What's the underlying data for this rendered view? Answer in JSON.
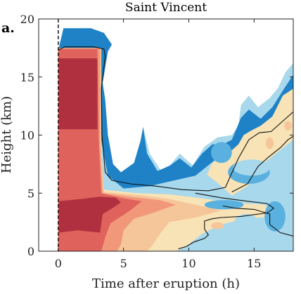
{
  "panel_label": "a.",
  "chart_data": {
    "type": "heatmap",
    "title": "Saint Vincent",
    "xlabel": "Time after eruption (h)",
    "ylabel": "Height (km)",
    "xlim": [
      -1.5,
      18
    ],
    "ylim": [
      0,
      20
    ],
    "xticks": [
      0,
      5,
      10,
      15
    ],
    "yticks": [
      0,
      5,
      10,
      15,
      20
    ],
    "grid": false,
    "legend": "none",
    "eruption_time_line": 0,
    "colors": {
      "dark_red": "#b03040",
      "red": "#e0625c",
      "salmon": "#f2987a",
      "peach": "#f5c69a",
      "cream": "#f8e3b6",
      "light_blue": "#a8d8ec",
      "mid_blue": "#5ab0de",
      "blue": "#1f82c6",
      "dark_blue": "#1565a8",
      "contour": "#111111"
    },
    "regions": [
      {
        "name": "outer-plume",
        "level": "light_blue",
        "points": [
          [
            0,
            0
          ],
          [
            0,
            17.3
          ],
          [
            0.4,
            19.2
          ],
          [
            2.5,
            19.2
          ],
          [
            3.5,
            18.8
          ],
          [
            4.1,
            17.8
          ],
          [
            3.8,
            17.2
          ],
          [
            3.5,
            16.5
          ],
          [
            3.3,
            14
          ],
          [
            3.4,
            10
          ],
          [
            3.6,
            8
          ],
          [
            4.2,
            6.4
          ],
          [
            5.2,
            6.4
          ],
          [
            6.2,
            8
          ],
          [
            6.5,
            10.7
          ],
          [
            7.0,
            8.4
          ],
          [
            8.0,
            6.7
          ],
          [
            9.3,
            8.4
          ],
          [
            10.3,
            7.4
          ],
          [
            11.2,
            9.0
          ],
          [
            12.2,
            9.8
          ],
          [
            13.3,
            10.0
          ],
          [
            13.8,
            10.8
          ],
          [
            14.0,
            12.6
          ],
          [
            14.6,
            13.4
          ],
          [
            15.3,
            12.4
          ],
          [
            16.2,
            13.2
          ],
          [
            16.8,
            14.0
          ],
          [
            17.4,
            15.4
          ],
          [
            18,
            16.2
          ],
          [
            18,
            0
          ]
        ]
      },
      {
        "name": "blue-layer",
        "level": "blue",
        "points": [
          [
            0,
            17.3
          ],
          [
            0.4,
            19.2
          ],
          [
            2.5,
            19.2
          ],
          [
            3.5,
            18.8
          ],
          [
            4.1,
            17.8
          ],
          [
            3.8,
            17.2
          ],
          [
            3.4,
            14.5
          ],
          [
            3.6,
            13
          ],
          [
            3.8,
            10
          ],
          [
            4.2,
            7.5
          ],
          [
            4.8,
            6.8
          ],
          [
            5.8,
            7.6
          ],
          [
            6.3,
            9.5
          ],
          [
            6.5,
            10.7
          ],
          [
            6.8,
            8.4
          ],
          [
            7.6,
            6.9
          ],
          [
            8.6,
            7.4
          ],
          [
            9.3,
            8.0
          ],
          [
            10.2,
            7.2
          ],
          [
            11.0,
            8.4
          ],
          [
            11.8,
            9.2
          ],
          [
            12.6,
            9.2
          ],
          [
            13.3,
            9.6
          ],
          [
            14.0,
            11.5
          ],
          [
            14.6,
            12.2
          ],
          [
            15.5,
            11.4
          ],
          [
            16.4,
            12.4
          ],
          [
            17.3,
            14.0
          ],
          [
            18,
            15.2
          ],
          [
            18,
            13.0
          ],
          [
            16.5,
            11.2
          ],
          [
            15.0,
            10.2
          ],
          [
            13.8,
            8.6
          ],
          [
            12.5,
            8.3
          ],
          [
            10.5,
            6.5
          ],
          [
            8.5,
            6.0
          ],
          [
            7.0,
            5.6
          ],
          [
            5.0,
            5.4
          ],
          [
            3.8,
            6.5
          ],
          [
            3.3,
            9.5
          ],
          [
            3.1,
            14.0
          ],
          [
            2.8,
            16.8
          ],
          [
            0.5,
            17.2
          ]
        ]
      },
      {
        "name": "cream-region",
        "level": "cream",
        "points": [
          [
            3.2,
            9
          ],
          [
            3.5,
            5.3
          ],
          [
            6,
            5.0
          ],
          [
            8.5,
            4.9
          ],
          [
            10,
            4.7
          ],
          [
            12,
            4.4
          ],
          [
            14.5,
            4.1
          ],
          [
            15.8,
            4.0
          ],
          [
            16.5,
            3.5
          ],
          [
            16.2,
            3.0
          ],
          [
            14,
            2.7
          ],
          [
            12.5,
            2.3
          ],
          [
            11,
            1.5
          ],
          [
            9.8,
            0.4
          ],
          [
            9,
            0
          ],
          [
            0,
            0
          ],
          [
            0,
            17.3
          ],
          [
            3.0,
            17.3
          ],
          [
            3.1,
            14
          ]
        ]
      },
      {
        "name": "cream-upper-region",
        "level": "cream",
        "points": [
          [
            13.3,
            4.8
          ],
          [
            14.5,
            5.6
          ],
          [
            15.3,
            7.2
          ],
          [
            16.2,
            8.0
          ],
          [
            17.1,
            8.8
          ],
          [
            18,
            9.6
          ],
          [
            18,
            14.0
          ],
          [
            17.2,
            13.4
          ],
          [
            16.4,
            11.6
          ],
          [
            15.5,
            10.8
          ],
          [
            14.8,
            10.4
          ],
          [
            14.2,
            10.0
          ],
          [
            13.8,
            9.2
          ],
          [
            13.0,
            8.4
          ],
          [
            11.8,
            7.6
          ],
          [
            11.4,
            6.6
          ],
          [
            12.4,
            5.7
          ]
        ]
      },
      {
        "name": "peach-region",
        "level": "peach",
        "points": [
          [
            0,
            0
          ],
          [
            0,
            17.5
          ],
          [
            3.3,
            17.5
          ],
          [
            3.3,
            9
          ],
          [
            3.5,
            5.1
          ],
          [
            6.5,
            4.8
          ],
          [
            8.5,
            4.5
          ],
          [
            10.5,
            4.0
          ],
          [
            12.5,
            3.5
          ],
          [
            10.5,
            2.9
          ],
          [
            8.5,
            2.5
          ],
          [
            7.8,
            1.5
          ],
          [
            7.2,
            0.5
          ],
          [
            6.8,
            0
          ]
        ]
      },
      {
        "name": "salmon-region",
        "level": "salmon",
        "points": [
          [
            0,
            0
          ],
          [
            0,
            17.5
          ],
          [
            3.2,
            17.5
          ],
          [
            3.2,
            9
          ],
          [
            3.4,
            5.0
          ],
          [
            5.5,
            4.7
          ],
          [
            7.8,
            4.4
          ],
          [
            9.0,
            4.0
          ],
          [
            7.5,
            3.4
          ],
          [
            5.8,
            2.8
          ],
          [
            5.0,
            1.8
          ],
          [
            4.8,
            0.6
          ],
          [
            4.5,
            0
          ]
        ]
      },
      {
        "name": "red-region",
        "level": "red",
        "points": [
          [
            0,
            0
          ],
          [
            0,
            17.4
          ],
          [
            3.0,
            17.4
          ],
          [
            3.1,
            9.5
          ],
          [
            3.3,
            5.0
          ],
          [
            4.8,
            4.6
          ],
          [
            6.4,
            4.3
          ],
          [
            5.5,
            3.5
          ],
          [
            4.0,
            2.4
          ],
          [
            3.6,
            1.2
          ],
          [
            3.3,
            0
          ]
        ]
      },
      {
        "name": "dark-red-upper-region",
        "level": "dark_red",
        "points": [
          [
            0.05,
            10.5
          ],
          [
            0.05,
            16.6
          ],
          [
            3.0,
            16.6
          ],
          [
            3.0,
            10.5
          ]
        ]
      },
      {
        "name": "dark-red-lower-region",
        "level": "dark_red",
        "points": [
          [
            0.05,
            1.6
          ],
          [
            0.05,
            4.3
          ],
          [
            1.8,
            4.5
          ],
          [
            3.2,
            4.7
          ],
          [
            4.4,
            4.6
          ],
          [
            4.8,
            4.2
          ],
          [
            4.0,
            3.6
          ],
          [
            3.4,
            3.2
          ],
          [
            3.2,
            1.6
          ],
          [
            2.3,
            1.7
          ],
          [
            1.5,
            1.8
          ]
        ]
      }
    ],
    "blobs": [
      {
        "level": "mid_blue",
        "cx": 14.6,
        "cy": 6.8,
        "rx": 1.6,
        "ry": 1.0
      },
      {
        "level": "light_blue",
        "cx": 14.8,
        "cy": 7.2,
        "rx": 1.4,
        "ry": 0.7
      },
      {
        "level": "mid_blue",
        "cx": 16.6,
        "cy": 3.0,
        "rx": 0.8,
        "ry": 1.3
      },
      {
        "level": "mid_blue",
        "cx": 12.7,
        "cy": 4.0,
        "rx": 1.5,
        "ry": 0.4
      },
      {
        "level": "mid_blue",
        "cx": 12.5,
        "cy": 8.5,
        "rx": 0.8,
        "ry": 0.9
      },
      {
        "level": "light_blue",
        "cx": 14.4,
        "cy": 2.5,
        "rx": 0.9,
        "ry": 0.7
      },
      {
        "level": "peach",
        "cx": 12.2,
        "cy": 2.2,
        "rx": 0.5,
        "ry": 0.3
      },
      {
        "level": "peach",
        "cx": 16.2,
        "cy": 9.3,
        "rx": 0.3,
        "ry": 0.5
      },
      {
        "level": "peach",
        "cx": 17.6,
        "cy": 10.8,
        "rx": 0.3,
        "ry": 0.4
      }
    ],
    "contours": [
      {
        "name": "outer-contour",
        "points": [
          [
            0,
            17.3
          ],
          [
            0.5,
            17.6
          ],
          [
            2.7,
            17.6
          ],
          [
            3.5,
            17.4
          ],
          [
            3.6,
            16.8
          ],
          [
            3.3,
            14
          ],
          [
            3.35,
            10
          ],
          [
            3.6,
            6.8
          ],
          [
            4.1,
            6.1
          ],
          [
            5.5,
            5.8
          ],
          [
            7.5,
            5.6
          ],
          [
            9.5,
            5.3
          ],
          [
            11.5,
            5.2
          ],
          [
            12.8,
            5.5
          ],
          [
            13.2,
            6.5
          ],
          [
            13.8,
            8.0
          ],
          [
            14.6,
            9.6
          ],
          [
            15.4,
            10.2
          ],
          [
            16.3,
            10.3
          ],
          [
            17.2,
            11.2
          ],
          [
            18,
            12.0
          ]
        ]
      },
      {
        "name": "inner-plume-contour",
        "points": [
          [
            10.5,
            5.0
          ],
          [
            12.5,
            4.6
          ],
          [
            14.5,
            4.3
          ],
          [
            16.0,
            4.1
          ],
          [
            16.5,
            3.7
          ],
          [
            16.0,
            3.3
          ],
          [
            14.0,
            3.0
          ],
          [
            12.5,
            2.9
          ],
          [
            11.8,
            2.8
          ],
          [
            11.2,
            2.6
          ],
          [
            11.2,
            1.9
          ],
          [
            11.5,
            1.4
          ],
          [
            11.2,
            1.1
          ],
          [
            10.4,
            0.8
          ],
          [
            9.8,
            0.4
          ],
          [
            9.2,
            0.2
          ]
        ]
      },
      {
        "name": "right-contour",
        "points": [
          [
            12.6,
            3.9
          ],
          [
            13.6,
            3.7
          ],
          [
            15.0,
            3.6
          ],
          [
            16.2,
            3.2
          ],
          [
            16.2,
            2.3
          ],
          [
            17.0,
            1.6
          ],
          [
            18,
            1.3
          ]
        ]
      },
      {
        "name": "cream-upper-contour",
        "points": [
          [
            13.3,
            5.1
          ],
          [
            14.5,
            5.8
          ],
          [
            15.3,
            7.3
          ],
          [
            16.1,
            8.1
          ],
          [
            17.0,
            8.9
          ],
          [
            17.6,
            9.6
          ],
          [
            18,
            9.9
          ]
        ]
      }
    ]
  }
}
